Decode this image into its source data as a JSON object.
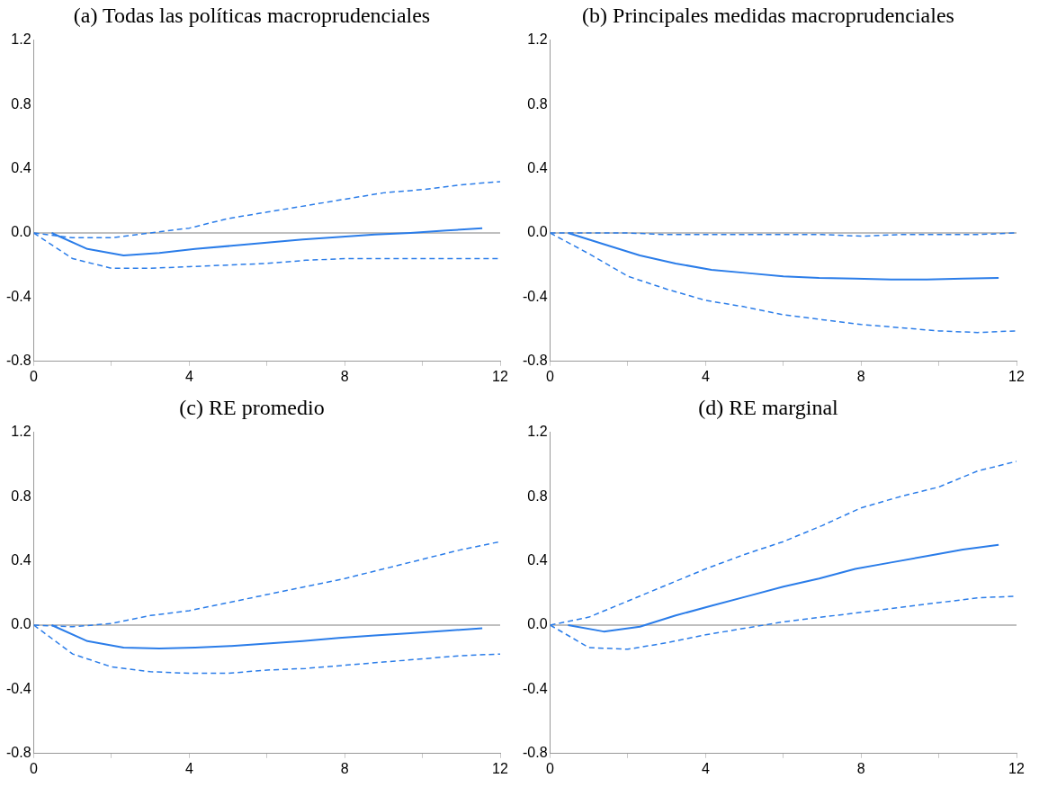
{
  "chart_data": [
    {
      "type": "line",
      "title": "(a) Todas las políticas macroprudenciales",
      "xlim": [
        0,
        12
      ],
      "xticks": [
        0,
        {
          "value": 2,
          "label": null
        },
        4,
        {
          "value": 6,
          "label": null
        },
        8,
        {
          "value": 10,
          "label": null
        },
        12
      ],
      "ylim": [
        -0.8,
        1.2
      ],
      "yticks": [
        {
          "value": -0.8,
          "label": "-0.8"
        },
        {
          "value": -0.4,
          "label": "-0.4"
        },
        {
          "value": 0,
          "label": "0.0"
        },
        {
          "value": 0.4,
          "label": "0.4"
        },
        {
          "value": 0.8,
          "label": "0.8"
        },
        {
          "value": 1.2,
          "label": "1.2"
        }
      ],
      "grid": false,
      "legend": false,
      "ref_lines": [
        {
          "axis": "y",
          "value": 0,
          "color": "#808080"
        }
      ],
      "series": [
        {
          "color": "#2b7de9",
          "line_style": "solid",
          "x": [
            0.46,
            1.38,
            2.31,
            3.23,
            4.15,
            5.08,
            6,
            6.92,
            7.85,
            8.77,
            9.69,
            10.62,
            11.54
          ],
          "values": [
            0,
            -0.1,
            -0.14,
            -0.125,
            -0.1,
            -0.08,
            -0.06,
            -0.04,
            -0.025,
            -0.01,
            0,
            0.015,
            0.03
          ]
        },
        {
          "color": "#2b7de9",
          "line_style": "dashed",
          "x": [
            0,
            1,
            2,
            3,
            4,
            5,
            6,
            7,
            8,
            9,
            10,
            11,
            12
          ],
          "values": [
            0,
            -0.03,
            -0.03,
            0,
            0.03,
            0.09,
            0.13,
            0.17,
            0.21,
            0.25,
            0.27,
            0.3,
            0.32
          ]
        },
        {
          "color": "#2b7de9",
          "line_style": "dashed",
          "x": [
            0,
            1,
            2,
            3,
            4,
            5,
            6,
            7,
            8,
            9,
            10,
            11,
            12
          ],
          "values": [
            0,
            -0.16,
            -0.22,
            -0.22,
            -0.21,
            -0.2,
            -0.19,
            -0.17,
            -0.16,
            -0.16,
            -0.16,
            -0.16,
            -0.16
          ]
        }
      ]
    },
    {
      "type": "line",
      "title": "(b) Principales medidas macroprudenciales",
      "xlim": [
        0,
        12
      ],
      "xticks": [
        0,
        {
          "value": 2,
          "label": null
        },
        4,
        {
          "value": 6,
          "label": null
        },
        8,
        {
          "value": 10,
          "label": null
        },
        12
      ],
      "ylim": [
        -0.8,
        1.2
      ],
      "yticks": [
        {
          "value": -0.8,
          "label": "-0.8"
        },
        {
          "value": -0.4,
          "label": "-0.4"
        },
        {
          "value": 0,
          "label": "0.0"
        },
        {
          "value": 0.4,
          "label": "0.4"
        },
        {
          "value": 0.8,
          "label": "0.8"
        },
        {
          "value": 1.2,
          "label": "1.2"
        }
      ],
      "grid": false,
      "legend": false,
      "ref_lines": [
        {
          "axis": "y",
          "value": 0,
          "color": "#808080"
        }
      ],
      "series": [
        {
          "color": "#2b7de9",
          "line_style": "solid",
          "x": [
            0.46,
            1.38,
            2.31,
            3.23,
            4.15,
            5.08,
            6,
            6.92,
            7.85,
            8.77,
            9.69,
            10.62,
            11.54
          ],
          "values": [
            0,
            -0.07,
            -0.14,
            -0.19,
            -0.23,
            -0.25,
            -0.27,
            -0.28,
            -0.285,
            -0.29,
            -0.29,
            -0.285,
            -0.28
          ]
        },
        {
          "color": "#2b7de9",
          "line_style": "dashed",
          "x": [
            0,
            1,
            2,
            3,
            4,
            5,
            6,
            7,
            8,
            9,
            10,
            11,
            12
          ],
          "values": [
            0,
            0,
            0,
            -0.01,
            -0.01,
            -0.01,
            -0.01,
            -0.01,
            -0.02,
            -0.01,
            -0.01,
            -0.01,
            0
          ]
        },
        {
          "color": "#2b7de9",
          "line_style": "dashed",
          "x": [
            0,
            1,
            2,
            3,
            4,
            5,
            6,
            7,
            8,
            9,
            10,
            11,
            12
          ],
          "values": [
            0,
            -0.13,
            -0.27,
            -0.35,
            -0.42,
            -0.46,
            -0.51,
            -0.54,
            -0.57,
            -0.59,
            -0.61,
            -0.62,
            -0.61
          ]
        }
      ]
    },
    {
      "type": "line",
      "title": "(c) RE promedio",
      "xlim": [
        0,
        12
      ],
      "xticks": [
        0,
        {
          "value": 2,
          "label": null
        },
        4,
        {
          "value": 6,
          "label": null
        },
        8,
        {
          "value": 10,
          "label": null
        },
        12
      ],
      "ylim": [
        -0.8,
        1.2
      ],
      "yticks": [
        {
          "value": -0.8,
          "label": "-0.8"
        },
        {
          "value": -0.4,
          "label": "-0.4"
        },
        {
          "value": 0,
          "label": "0.0"
        },
        {
          "value": 0.4,
          "label": "0.4"
        },
        {
          "value": 0.8,
          "label": "0.8"
        },
        {
          "value": 1.2,
          "label": "1.2"
        }
      ],
      "grid": false,
      "legend": false,
      "ref_lines": [
        {
          "axis": "y",
          "value": 0,
          "color": "#808080"
        }
      ],
      "series": [
        {
          "color": "#2b7de9",
          "line_style": "solid",
          "x": [
            0.46,
            1.38,
            2.31,
            3.23,
            4.15,
            5.08,
            6,
            6.92,
            7.85,
            8.77,
            9.69,
            10.62,
            11.54
          ],
          "values": [
            0,
            -0.1,
            -0.14,
            -0.145,
            -0.14,
            -0.13,
            -0.115,
            -0.1,
            -0.08,
            -0.065,
            -0.05,
            -0.035,
            -0.02
          ]
        },
        {
          "color": "#2b7de9",
          "line_style": "dashed",
          "x": [
            0,
            1,
            2,
            3,
            4,
            5,
            6,
            7,
            8,
            9,
            10,
            11,
            12
          ],
          "values": [
            0,
            -0.01,
            0.01,
            0.06,
            0.09,
            0.14,
            0.19,
            0.24,
            0.29,
            0.35,
            0.41,
            0.47,
            0.52
          ]
        },
        {
          "color": "#2b7de9",
          "line_style": "dashed",
          "x": [
            0,
            1,
            2,
            3,
            4,
            5,
            6,
            7,
            8,
            9,
            10,
            11,
            12
          ],
          "values": [
            0,
            -0.18,
            -0.26,
            -0.29,
            -0.3,
            -0.3,
            -0.28,
            -0.27,
            -0.25,
            -0.23,
            -0.21,
            -0.19,
            -0.18
          ]
        }
      ]
    },
    {
      "type": "line",
      "title": "(d) RE marginal",
      "xlim": [
        0,
        12
      ],
      "xticks": [
        0,
        {
          "value": 2,
          "label": null
        },
        4,
        {
          "value": 6,
          "label": null
        },
        8,
        {
          "value": 10,
          "label": null
        },
        12
      ],
      "ylim": [
        -0.8,
        1.2
      ],
      "yticks": [
        {
          "value": -0.8,
          "label": "-0.8"
        },
        {
          "value": -0.4,
          "label": "-0.4"
        },
        {
          "value": 0,
          "label": "0.0"
        },
        {
          "value": 0.4,
          "label": "0.4"
        },
        {
          "value": 0.8,
          "label": "0.8"
        },
        {
          "value": 1.2,
          "label": "1.2"
        }
      ],
      "grid": false,
      "legend": false,
      "ref_lines": [
        {
          "axis": "y",
          "value": 0,
          "color": "#808080"
        }
      ],
      "series": [
        {
          "color": "#2b7de9",
          "line_style": "solid",
          "x": [
            0.46,
            1.38,
            2.31,
            3.23,
            4.15,
            5.08,
            6,
            6.92,
            7.85,
            8.77,
            9.69,
            10.62,
            11.54
          ],
          "values": [
            0,
            -0.04,
            -0.01,
            0.06,
            0.12,
            0.18,
            0.24,
            0.29,
            0.35,
            0.39,
            0.43,
            0.47,
            0.5
          ]
        },
        {
          "color": "#2b7de9",
          "line_style": "dashed",
          "x": [
            0,
            1,
            2,
            3,
            4,
            5,
            6,
            7,
            8,
            9,
            10,
            11,
            12
          ],
          "values": [
            0,
            0.05,
            0.15,
            0.25,
            0.35,
            0.44,
            0.52,
            0.62,
            0.73,
            0.8,
            0.86,
            0.96,
            1.02
          ]
        },
        {
          "color": "#2b7de9",
          "line_style": "dashed",
          "x": [
            0,
            1,
            2,
            3,
            4,
            5,
            6,
            7,
            8,
            9,
            10,
            11,
            12
          ],
          "values": [
            0,
            -0.14,
            -0.15,
            -0.11,
            -0.06,
            -0.02,
            0.02,
            0.05,
            0.08,
            0.11,
            0.14,
            0.17,
            0.18
          ]
        }
      ]
    }
  ]
}
